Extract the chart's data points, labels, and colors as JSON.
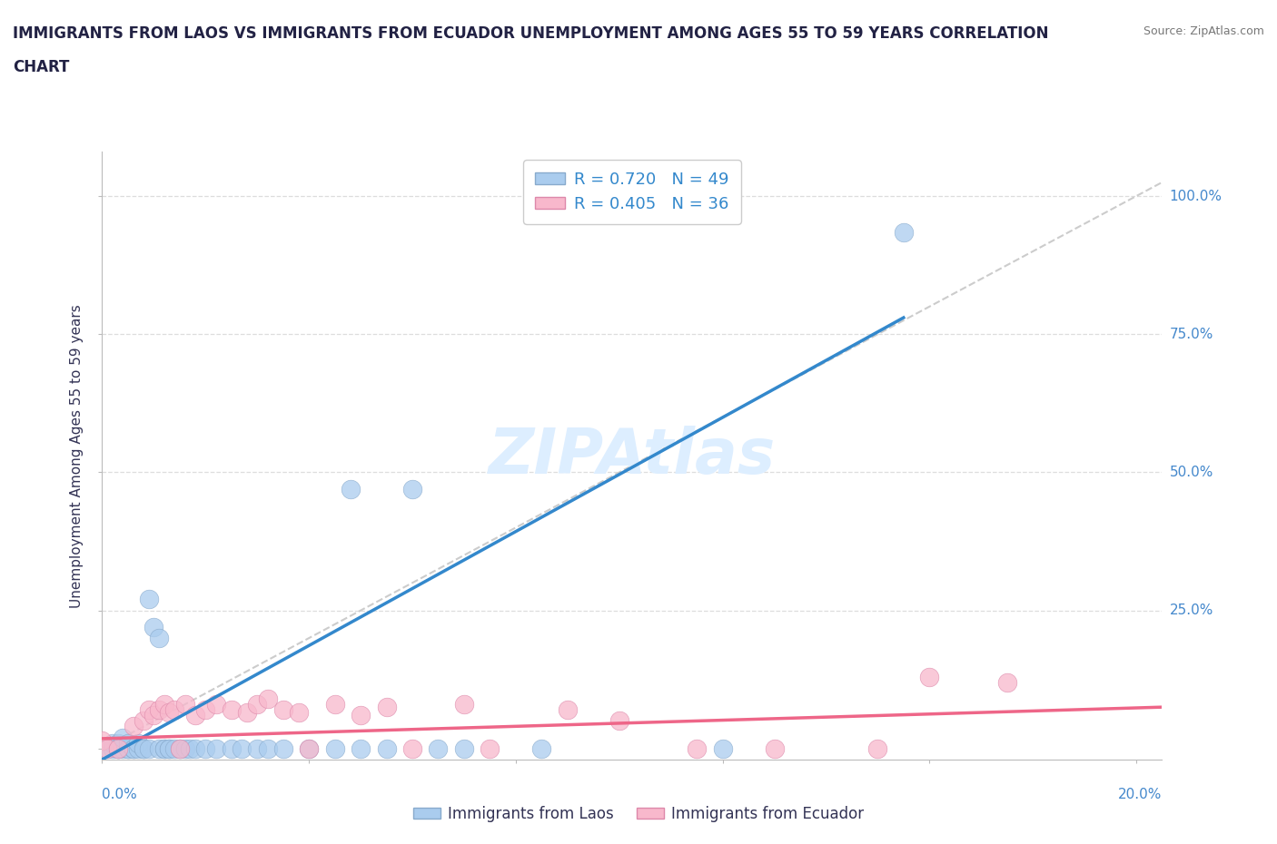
{
  "title_line1": "IMMIGRANTS FROM LAOS VS IMMIGRANTS FROM ECUADOR UNEMPLOYMENT AMONG AGES 55 TO 59 YEARS CORRELATION",
  "title_line2": "CHART",
  "source": "Source: ZipAtlas.com",
  "ylabel": "Unemployment Among Ages 55 to 59 years",
  "laos_R": 0.72,
  "laos_N": 49,
  "ecuador_R": 0.405,
  "ecuador_N": 36,
  "laos_color": "#aaccee",
  "laos_edge_color": "#88aacc",
  "laos_line_color": "#3388cc",
  "ecuador_color": "#f8b8cc",
  "ecuador_edge_color": "#dd88aa",
  "ecuador_line_color": "#ee6688",
  "ref_line_color": "#cccccc",
  "grid_color": "#dddddd",
  "background_color": "#ffffff",
  "watermark_color": "#ddeeff",
  "watermark_text": "ZIPAtlas",
  "xlim": [
    0.0,
    0.205
  ],
  "ylim": [
    -0.02,
    1.08
  ],
  "laos_line_x0": 0.0,
  "laos_line_y0": -0.02,
  "laos_line_x1": 0.155,
  "laos_line_y1": 0.78,
  "ecuador_line_x0": 0.0,
  "ecuador_line_y0": 0.018,
  "ecuador_line_x1": 0.205,
  "ecuador_line_y1": 0.075,
  "ref_line_x0": 0.0,
  "ref_line_y0": 0.0,
  "ref_line_x1": 0.205,
  "ref_line_y1": 1.025,
  "laos_x": [
    0.001,
    0.002,
    0.002,
    0.003,
    0.003,
    0.003,
    0.004,
    0.004,
    0.005,
    0.005,
    0.005,
    0.006,
    0.006,
    0.007,
    0.007,
    0.008,
    0.008,
    0.009,
    0.009,
    0.01,
    0.011,
    0.011,
    0.012,
    0.012,
    0.013,
    0.013,
    0.014,
    0.015,
    0.016,
    0.017,
    0.018,
    0.02,
    0.022,
    0.025,
    0.027,
    0.03,
    0.032,
    0.035,
    0.04,
    0.045,
    0.048,
    0.05,
    0.055,
    0.06,
    0.065,
    0.07,
    0.085,
    0.12,
    0.155
  ],
  "laos_y": [
    0.0,
    0.0,
    0.01,
    0.0,
    0.01,
    0.0,
    0.0,
    0.02,
    0.0,
    0.0,
    0.01,
    0.0,
    0.0,
    0.0,
    0.01,
    0.0,
    0.0,
    0.0,
    0.27,
    0.22,
    0.0,
    0.2,
    0.0,
    0.0,
    0.0,
    0.0,
    0.0,
    0.0,
    0.0,
    0.0,
    0.0,
    0.0,
    0.0,
    0.0,
    0.0,
    0.0,
    0.0,
    0.0,
    0.0,
    0.0,
    0.47,
    0.0,
    0.0,
    0.47,
    0.0,
    0.0,
    0.0,
    0.0,
    0.935
  ],
  "ecuador_x": [
    0.0,
    0.001,
    0.003,
    0.006,
    0.008,
    0.009,
    0.01,
    0.011,
    0.012,
    0.013,
    0.014,
    0.015,
    0.016,
    0.018,
    0.02,
    0.022,
    0.025,
    0.028,
    0.03,
    0.032,
    0.035,
    0.038,
    0.04,
    0.045,
    0.05,
    0.055,
    0.06,
    0.07,
    0.075,
    0.09,
    0.1,
    0.115,
    0.13,
    0.15,
    0.16,
    0.175
  ],
  "ecuador_y": [
    0.015,
    0.0,
    0.0,
    0.04,
    0.05,
    0.07,
    0.06,
    0.07,
    0.08,
    0.065,
    0.07,
    0.0,
    0.08,
    0.06,
    0.07,
    0.08,
    0.07,
    0.065,
    0.08,
    0.09,
    0.07,
    0.065,
    0.0,
    0.08,
    0.06,
    0.075,
    0.0,
    0.08,
    0.0,
    0.07,
    0.05,
    0.0,
    0.0,
    0.0,
    0.13,
    0.12
  ],
  "ytick_positions": [
    0.0,
    0.25,
    0.5,
    0.75,
    1.0
  ],
  "ytick_labels": [
    "",
    "25.0%",
    "50.0%",
    "75.0%",
    "100.0%"
  ],
  "xtick_label_left": "0.0%",
  "xtick_label_right": "20.0%",
  "axis_label_color": "#4488cc",
  "title_color": "#222244",
  "ylabel_color": "#333355",
  "legend_label_color": "#3388cc"
}
